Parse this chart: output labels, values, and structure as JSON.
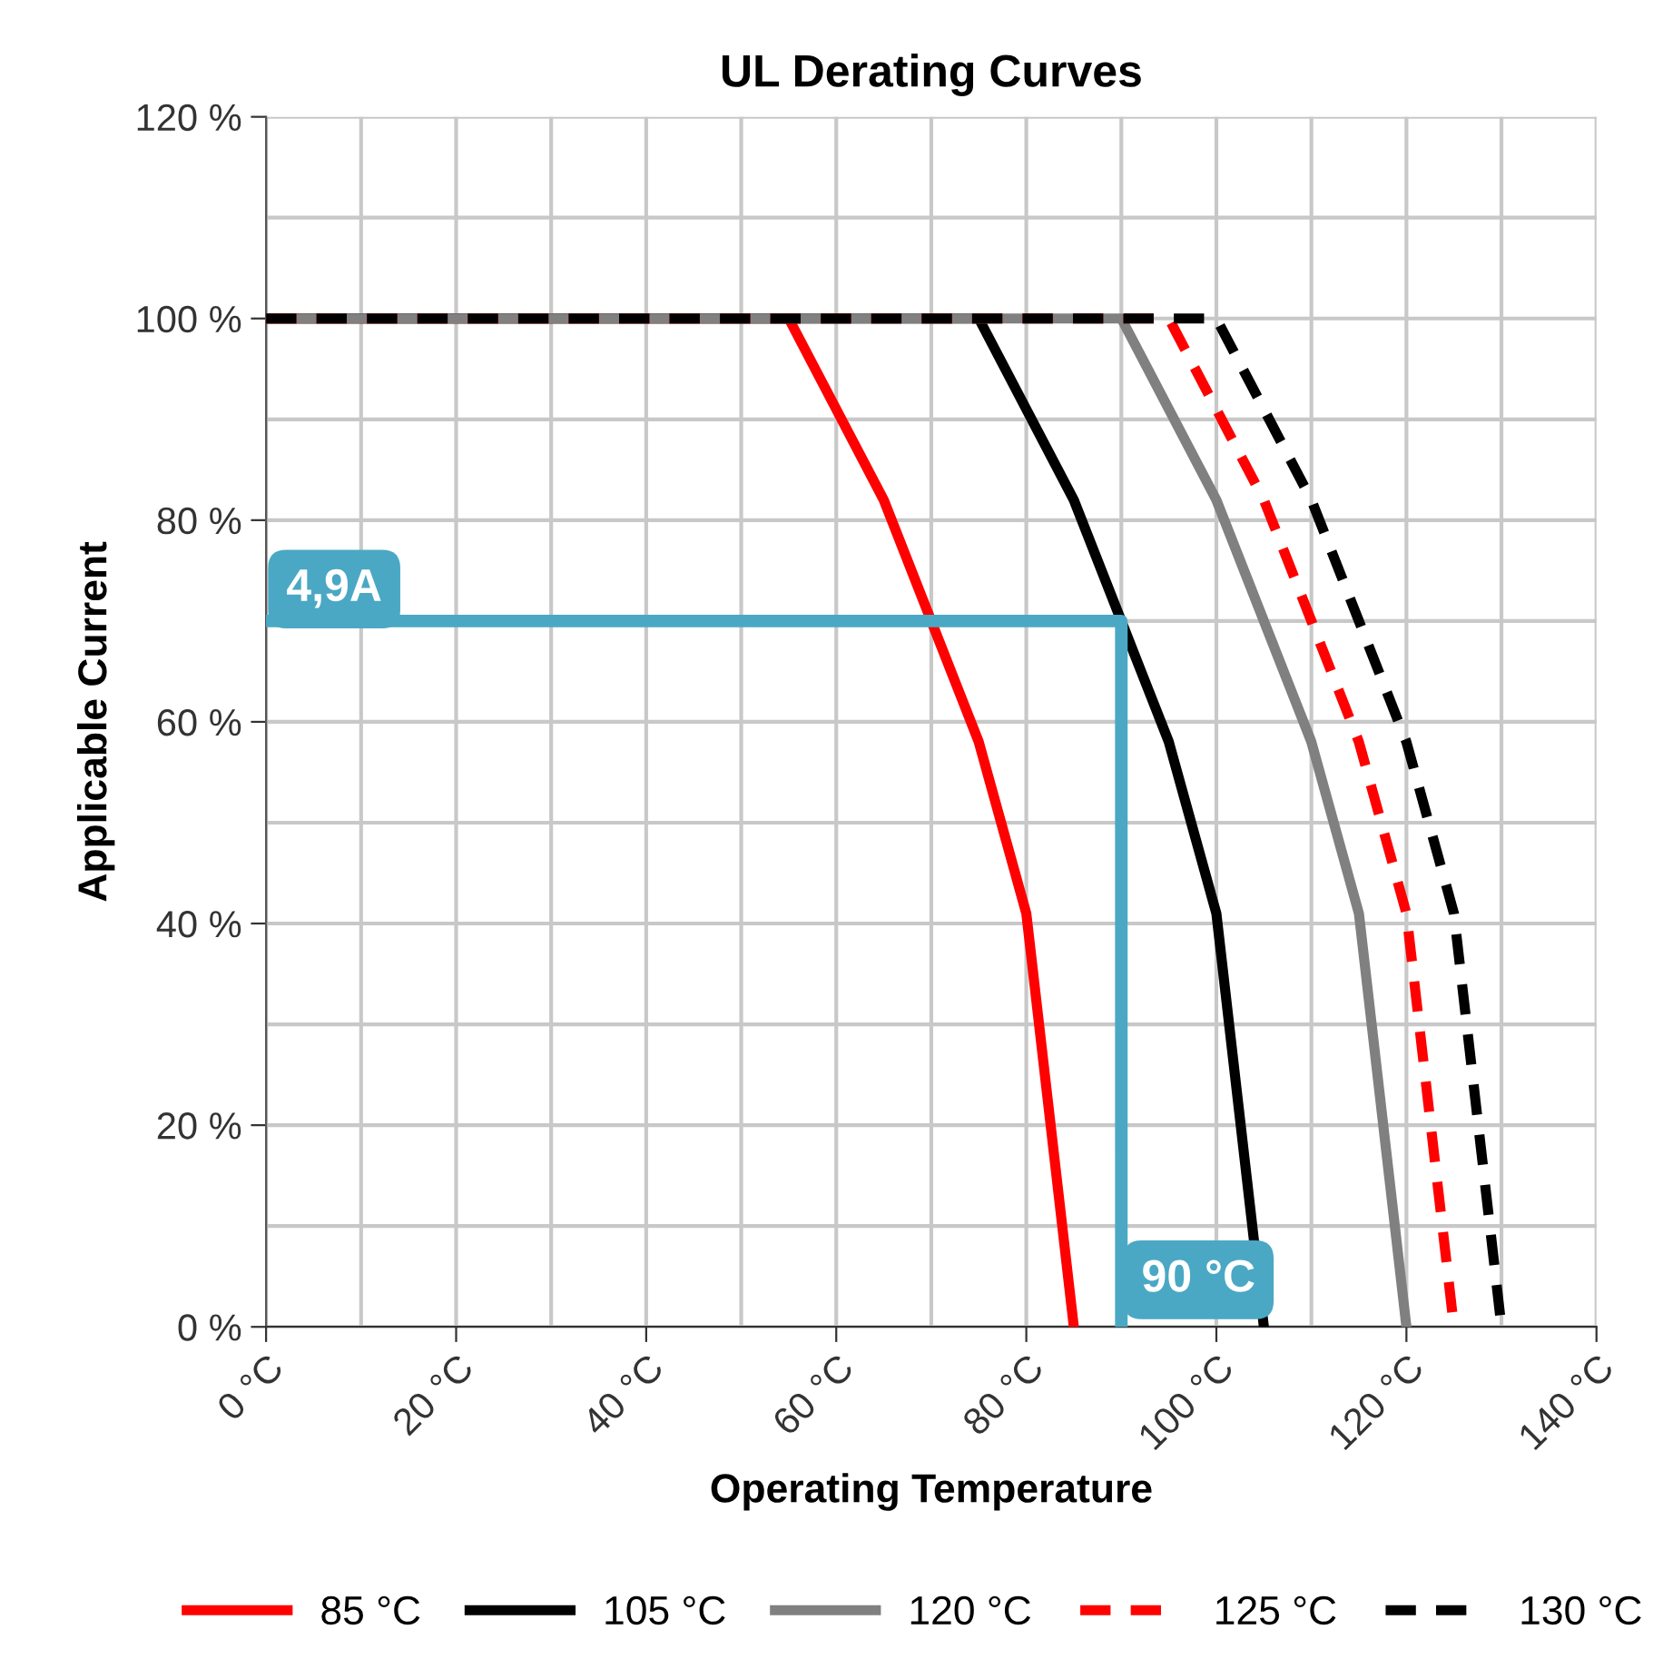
{
  "chart_data": {
    "type": "line",
    "title": "UL Derating Curves",
    "xlabel": "Operating Temperature",
    "ylabel": "Applicable Current",
    "series": [
      {
        "name": "85 °C",
        "color": "#ff0000",
        "line_style": "solid",
        "x": [
          0,
          55,
          65,
          70,
          75,
          80,
          85
        ],
        "values": [
          100,
          100,
          82,
          70,
          58,
          41,
          0
        ]
      },
      {
        "name": "105 °C",
        "color": "#000000",
        "line_style": "solid",
        "x": [
          0,
          75,
          85,
          90,
          95,
          100,
          105
        ],
        "values": [
          100,
          100,
          82,
          70,
          58,
          41,
          0
        ]
      },
      {
        "name": "120 °C",
        "color": "#808080",
        "line_style": "solid",
        "x": [
          0,
          90,
          100,
          105,
          110,
          115,
          120
        ],
        "values": [
          100,
          100,
          82,
          70,
          58,
          41,
          0
        ]
      },
      {
        "name": "125 °C",
        "color": "#ff0000",
        "line_style": "dashed",
        "x": [
          0,
          95,
          105,
          110,
          115,
          120,
          125
        ],
        "values": [
          100,
          100,
          82,
          70,
          58,
          41,
          0
        ]
      },
      {
        "name": "130 °C",
        "color": "#000000",
        "line_style": "dashed",
        "x": [
          0,
          100,
          110,
          115,
          120,
          125,
          130
        ],
        "values": [
          100,
          100,
          82,
          70,
          58,
          41,
          0
        ]
      },
      {
        "color": "#4aa8c4",
        "line_style": "solid",
        "x": [
          0,
          90,
          90
        ],
        "values": [
          70,
          70,
          0
        ]
      }
    ],
    "annotations": [
      {
        "text": "4,9A",
        "x": 0,
        "y": 70
      },
      {
        "text": "90 °C",
        "x": 90,
        "y": 0
      }
    ],
    "xlim": [
      0,
      140
    ],
    "xticks": [
      {
        "value": 0,
        "label": "0 °C"
      },
      {
        "value": 20,
        "label": "20 °C"
      },
      {
        "value": 40,
        "label": "40 °C"
      },
      {
        "value": 60,
        "label": "60 °C"
      },
      {
        "value": 80,
        "label": "80 °C"
      },
      {
        "value": 100,
        "label": "100 °C"
      },
      {
        "value": 120,
        "label": "120 °C"
      },
      {
        "value": 140,
        "label": "140 °C"
      }
    ],
    "ylim": [
      0,
      120
    ],
    "yticks": [
      {
        "value": 0,
        "label": "0 %"
      },
      {
        "value": 20,
        "label": "20 %"
      },
      {
        "value": 40,
        "label": "40 %"
      },
      {
        "value": 60,
        "label": "60 %"
      },
      {
        "value": 80,
        "label": "80 %"
      },
      {
        "value": 100,
        "label": "100 %"
      },
      {
        "value": 120,
        "label": "120 %"
      }
    ],
    "grid": true,
    "legend": "bottom",
    "marker": "none"
  }
}
